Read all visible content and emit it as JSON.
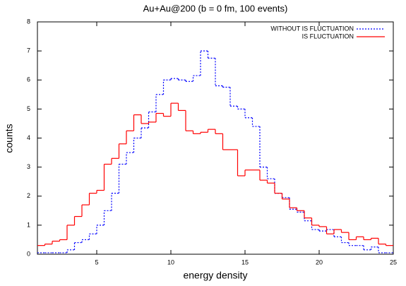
{
  "chart_data": {
    "type": "histogram",
    "title": "Au+Au@200 (b = 0 fm, 100 events)",
    "x_label": "energy density",
    "y_label": "counts",
    "bins": [
      1,
      1.5,
      2,
      2.5,
      3,
      3.5,
      4,
      4.5,
      5,
      5.5,
      6,
      6.5,
      7,
      7.5,
      8,
      8.5,
      9,
      9.5,
      10,
      10.5,
      11,
      11.5,
      12,
      12.5,
      13,
      13.5,
      14,
      14.5,
      15,
      15.5,
      16,
      16.5,
      17,
      17.5,
      18,
      18.5,
      19,
      19.5,
      20,
      20.5,
      21,
      21.5,
      22,
      22.5,
      23,
      23.5,
      24,
      24.5,
      25
    ],
    "series": [
      {
        "name": "WITHOUT IS FLUCTUATION",
        "color": "#0000ff",
        "dashed": true,
        "values": [
          0.05,
          0.05,
          0.05,
          0.05,
          0.15,
          0.4,
          0.5,
          0.7,
          1.0,
          1.5,
          2.1,
          3.1,
          3.5,
          4.0,
          4.35,
          4.9,
          5.5,
          6.0,
          6.05,
          6.0,
          5.95,
          6.15,
          7.0,
          6.75,
          5.8,
          5.75,
          5.1,
          5.0,
          4.7,
          4.4,
          3.0,
          2.6,
          2.1,
          1.95,
          1.55,
          1.45,
          1.15,
          0.85,
          0.8,
          0.85,
          0.6,
          0.4,
          0.3,
          0.3,
          0.15,
          0.25,
          0.05,
          0.05
        ]
      },
      {
        "name": "IS FLUCTUATION",
        "color": "#ff0000",
        "dashed": false,
        "values": [
          0.3,
          0.35,
          0.45,
          0.5,
          1.0,
          1.3,
          1.7,
          2.1,
          2.2,
          3.1,
          3.3,
          3.8,
          4.25,
          4.8,
          4.5,
          4.55,
          4.85,
          4.75,
          5.2,
          4.95,
          4.25,
          4.15,
          4.2,
          4.3,
          4.15,
          3.6,
          3.6,
          2.7,
          2.9,
          2.9,
          2.55,
          2.45,
          2.1,
          1.9,
          1.6,
          1.5,
          1.25,
          1.0,
          0.95,
          0.7,
          0.85,
          0.75,
          0.5,
          0.6,
          0.5,
          0.55,
          0.35,
          0.3
        ]
      }
    ],
    "xlim": [
      1,
      25
    ],
    "xticks": [
      5,
      10,
      15,
      20,
      25
    ],
    "ylim": [
      0,
      8
    ],
    "yticks": [
      0,
      1,
      2,
      3,
      4,
      5,
      6,
      7,
      8
    ],
    "legend": "upper right"
  }
}
